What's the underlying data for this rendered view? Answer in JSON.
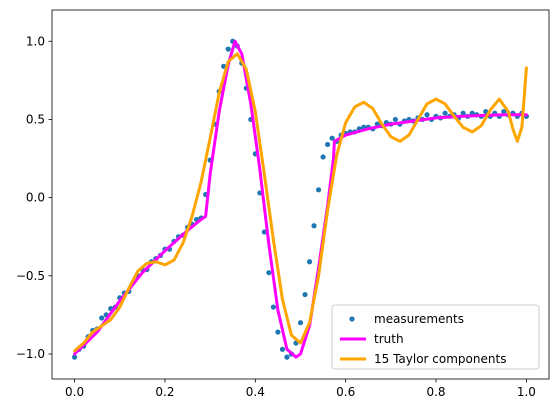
{
  "chart_data": {
    "type": "line",
    "title": "",
    "xlabel": "",
    "ylabel": "",
    "xlim": [
      -0.05,
      1.05
    ],
    "ylim": [
      -1.16,
      1.2
    ],
    "x_ticks": [
      0.0,
      0.2,
      0.4,
      0.6,
      0.8,
      1.0
    ],
    "x_tick_labels": [
      "0.0",
      "0.2",
      "0.4",
      "0.6",
      "0.8",
      "1.0"
    ],
    "y_ticks": [
      -1.0,
      -0.5,
      0.0,
      0.5,
      1.0
    ],
    "y_tick_labels": [
      "−1.0",
      "−0.5",
      "0.0",
      "0.5",
      "1.0"
    ],
    "grid": false,
    "legend_position": "lower right",
    "series": [
      {
        "name": "measurements",
        "kind": "scatter",
        "color": "#1f77b4",
        "x": [
          0.0,
          0.01,
          0.02,
          0.03,
          0.04,
          0.05,
          0.06,
          0.07,
          0.08,
          0.09,
          0.1,
          0.11,
          0.12,
          0.13,
          0.14,
          0.15,
          0.16,
          0.17,
          0.18,
          0.19,
          0.2,
          0.21,
          0.22,
          0.23,
          0.24,
          0.25,
          0.26,
          0.27,
          0.28,
          0.29,
          0.3,
          0.31,
          0.32,
          0.33,
          0.34,
          0.35,
          0.36,
          0.37,
          0.38,
          0.39,
          0.4,
          0.41,
          0.42,
          0.43,
          0.44,
          0.45,
          0.46,
          0.47,
          0.48,
          0.49,
          0.5,
          0.51,
          0.52,
          0.53,
          0.54,
          0.55,
          0.56,
          0.57,
          0.58,
          0.59,
          0.6,
          0.61,
          0.62,
          0.63,
          0.64,
          0.65,
          0.66,
          0.67,
          0.68,
          0.69,
          0.7,
          0.71,
          0.72,
          0.73,
          0.74,
          0.75,
          0.76,
          0.77,
          0.78,
          0.79,
          0.8,
          0.81,
          0.82,
          0.83,
          0.84,
          0.85,
          0.86,
          0.87,
          0.88,
          0.89,
          0.9,
          0.91,
          0.92,
          0.93,
          0.94,
          0.95,
          0.96,
          0.97,
          0.98,
          0.99,
          1.0
        ],
        "y": [
          -1.02,
          -0.97,
          -0.95,
          -0.89,
          -0.85,
          -0.84,
          -0.77,
          -0.75,
          -0.71,
          -0.7,
          -0.64,
          -0.61,
          -0.6,
          -0.54,
          -0.5,
          -0.46,
          -0.46,
          -0.41,
          -0.39,
          -0.37,
          -0.33,
          -0.33,
          -0.28,
          -0.25,
          -0.24,
          -0.19,
          -0.17,
          -0.14,
          -0.13,
          0.02,
          0.24,
          0.47,
          0.68,
          0.84,
          0.95,
          1.0,
          0.97,
          0.86,
          0.7,
          0.5,
          0.28,
          0.03,
          -0.22,
          -0.48,
          -0.7,
          -0.86,
          -0.97,
          -1.02,
          -1.0,
          -0.93,
          -0.8,
          -0.62,
          -0.41,
          -0.18,
          0.05,
          0.26,
          0.34,
          0.38,
          0.36,
          0.4,
          0.41,
          0.42,
          0.42,
          0.44,
          0.45,
          0.45,
          0.44,
          0.47,
          0.46,
          0.48,
          0.47,
          0.5,
          0.47,
          0.49,
          0.5,
          0.49,
          0.51,
          0.5,
          0.53,
          0.5,
          0.52,
          0.51,
          0.54,
          0.52,
          0.53,
          0.51,
          0.54,
          0.52,
          0.54,
          0.53,
          0.52,
          0.55,
          0.52,
          0.54,
          0.52,
          0.55,
          0.53,
          0.54,
          0.52,
          0.54,
          0.52
        ]
      },
      {
        "name": "truth",
        "kind": "line",
        "color": "#ff00ff",
        "x": [
          0.0,
          0.05,
          0.1,
          0.15,
          0.2,
          0.25,
          0.28,
          0.29,
          0.3,
          0.32,
          0.34,
          0.355,
          0.37,
          0.39,
          0.41,
          0.43,
          0.45,
          0.47,
          0.49,
          0.5,
          0.52,
          0.54,
          0.56,
          0.573,
          0.575,
          0.6,
          0.65,
          0.7,
          0.75,
          0.8,
          0.85,
          0.9,
          0.95,
          1.0
        ],
        "y": [
          -1.0,
          -0.86,
          -0.66,
          -0.48,
          -0.34,
          -0.21,
          -0.14,
          -0.12,
          0.15,
          0.55,
          0.85,
          1.0,
          0.92,
          0.6,
          0.18,
          -0.3,
          -0.72,
          -0.97,
          -1.02,
          -1.0,
          -0.82,
          -0.45,
          -0.05,
          0.25,
          0.36,
          0.4,
          0.44,
          0.47,
          0.49,
          0.51,
          0.52,
          0.525,
          0.53,
          0.53
        ]
      },
      {
        "name": "15 Taylor components",
        "kind": "line",
        "color": "#ffa500",
        "x": [
          0.0,
          0.02,
          0.04,
          0.06,
          0.08,
          0.1,
          0.12,
          0.14,
          0.16,
          0.18,
          0.2,
          0.22,
          0.24,
          0.26,
          0.28,
          0.3,
          0.32,
          0.34,
          0.36,
          0.38,
          0.4,
          0.42,
          0.44,
          0.46,
          0.48,
          0.5,
          0.52,
          0.54,
          0.56,
          0.58,
          0.6,
          0.62,
          0.64,
          0.66,
          0.68,
          0.7,
          0.72,
          0.74,
          0.76,
          0.78,
          0.8,
          0.82,
          0.84,
          0.86,
          0.88,
          0.9,
          0.92,
          0.94,
          0.96,
          0.97,
          0.98,
          0.99,
          1.0
        ],
        "y": [
          -0.98,
          -0.93,
          -0.86,
          -0.82,
          -0.78,
          -0.7,
          -0.58,
          -0.47,
          -0.42,
          -0.41,
          -0.43,
          -0.4,
          -0.29,
          -0.12,
          0.1,
          0.38,
          0.67,
          0.87,
          0.92,
          0.82,
          0.55,
          0.15,
          -0.27,
          -0.65,
          -0.88,
          -0.93,
          -0.8,
          -0.5,
          -0.08,
          0.27,
          0.48,
          0.58,
          0.61,
          0.57,
          0.47,
          0.39,
          0.36,
          0.4,
          0.5,
          0.6,
          0.63,
          0.6,
          0.52,
          0.45,
          0.42,
          0.46,
          0.56,
          0.63,
          0.55,
          0.44,
          0.36,
          0.45,
          0.83
        ]
      }
    ]
  }
}
